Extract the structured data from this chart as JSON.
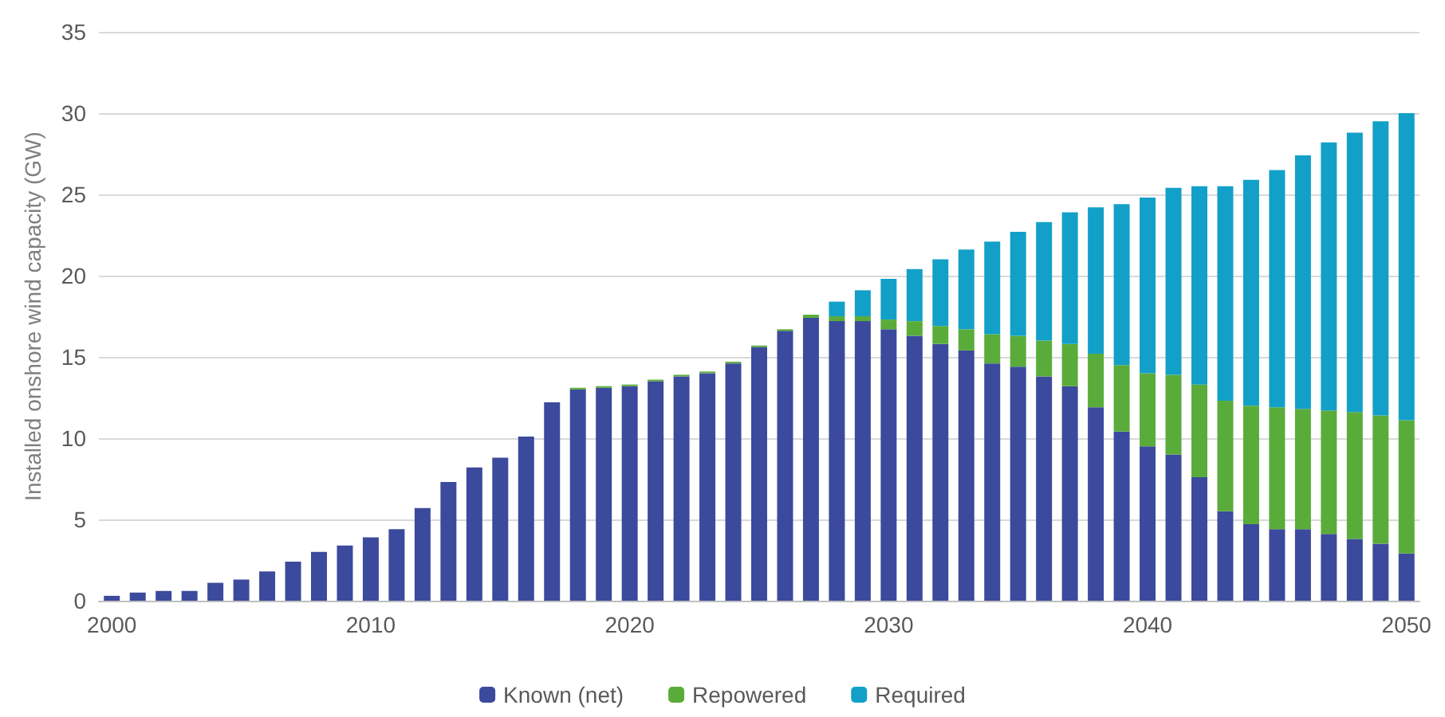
{
  "chart_data": {
    "type": "bar",
    "stacked": true,
    "ylabel": "Installed onshore wind capacity (GW)",
    "categories": [
      "2000",
      null,
      null,
      null,
      null,
      null,
      null,
      null,
      null,
      null,
      "2010",
      null,
      null,
      null,
      null,
      null,
      null,
      null,
      null,
      null,
      "2020",
      null,
      null,
      null,
      null,
      null,
      null,
      null,
      null,
      null,
      "2030",
      null,
      null,
      null,
      null,
      null,
      null,
      null,
      null,
      null,
      "2040",
      null,
      null,
      null,
      null,
      null,
      null,
      null,
      null,
      null,
      "2050"
    ],
    "series": [
      {
        "name": "Known (net)",
        "color": "#3b4a9c",
        "values": [
          0.3,
          0.5,
          0.6,
          0.6,
          1.1,
          1.3,
          1.8,
          2.4,
          3.0,
          3.4,
          3.9,
          4.4,
          5.7,
          7.3,
          8.2,
          8.8,
          10.1,
          12.2,
          13.0,
          13.1,
          13.2,
          13.5,
          13.8,
          14.0,
          14.6,
          15.6,
          16.6,
          17.4,
          17.2,
          17.2,
          16.7,
          16.3,
          15.8,
          15.4,
          14.6,
          14.4,
          13.8,
          13.2,
          11.9,
          10.4,
          9.5,
          9.0,
          7.6,
          5.5,
          4.7,
          4.4,
          4.4,
          4.1,
          3.8,
          3.5,
          2.9
        ]
      },
      {
        "name": "Repowered",
        "color": "#5aac3a",
        "values": [
          0,
          0,
          0,
          0,
          0,
          0,
          0,
          0,
          0,
          0,
          0,
          0,
          0,
          0,
          0,
          0,
          0,
          0,
          0.1,
          0.1,
          0.1,
          0.1,
          0.1,
          0.1,
          0.1,
          0.1,
          0.1,
          0.2,
          0.3,
          0.3,
          0.6,
          0.9,
          1.1,
          1.3,
          1.8,
          1.9,
          2.2,
          2.6,
          3.3,
          4.1,
          4.5,
          4.9,
          5.7,
          6.8,
          7.3,
          7.5,
          7.4,
          7.6,
          7.8,
          7.9,
          8.2
        ]
      },
      {
        "name": "Required",
        "color": "#12a0c8",
        "values": [
          0,
          0,
          0,
          0,
          0,
          0,
          0,
          0,
          0,
          0,
          0,
          0,
          0,
          0,
          0,
          0,
          0,
          0,
          0,
          0,
          0,
          0,
          0,
          0,
          0,
          0,
          0,
          0,
          0.9,
          1.6,
          2.5,
          3.2,
          4.1,
          4.9,
          5.7,
          6.4,
          7.3,
          8.1,
          9.0,
          9.9,
          10.8,
          11.5,
          12.2,
          13.2,
          13.9,
          14.6,
          15.6,
          16.5,
          17.2,
          18.1,
          18.9
        ]
      }
    ],
    "ylim": [
      0,
      35
    ],
    "yticks": [
      0,
      5,
      10,
      15,
      20,
      25,
      30,
      35
    ],
    "grid": "y",
    "legend": "bottom"
  }
}
